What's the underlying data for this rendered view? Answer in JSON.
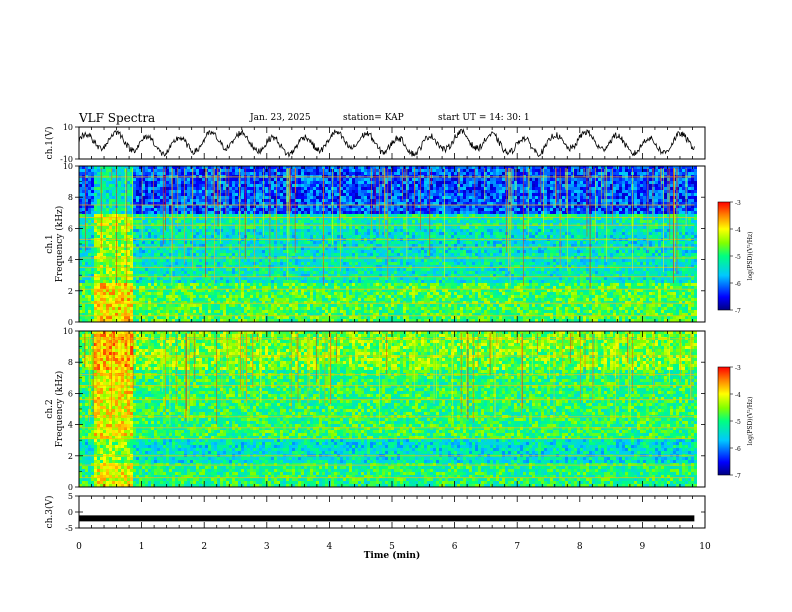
{
  "header": {
    "title": "VLF Spectra",
    "date": "Jan. 23, 2025",
    "station": "station= KAP",
    "start": "start  UT  =   14: 30: 1"
  },
  "chart_data": [
    {
      "type": "line",
      "ylabel": "ch.1(V)",
      "ylim": [
        -10,
        10
      ],
      "yticks": [
        "10",
        "-10"
      ],
      "xlim": [
        0,
        10
      ],
      "series": [
        {
          "pattern": "noisy oscillation, approx. 0.5-min period",
          "y_range": [
            -9,
            9
          ]
        }
      ]
    },
    {
      "type": "heatmap",
      "ylabel": "Frequency (kHz)",
      "channel_label": "ch.1",
      "ylim": [
        0,
        10
      ],
      "yticks": [
        "0",
        "2",
        "4",
        "6",
        "8",
        "10"
      ],
      "xlim": [
        0,
        10
      ],
      "colorbar": {
        "label": "log(PSD)(V²/Hz)",
        "range": [
          -7,
          -3
        ],
        "ticks": [
          "-3",
          "-4",
          "-5",
          "-6",
          "-7"
        ]
      }
    },
    {
      "type": "heatmap",
      "ylabel": "Frequency (kHz)",
      "channel_label": "ch.2",
      "ylim": [
        0,
        10
      ],
      "yticks": [
        "0",
        "2",
        "4",
        "6",
        "8",
        "10"
      ],
      "xlim": [
        0,
        10
      ],
      "colorbar": {
        "label": "log(PSD)(V²/Hz)",
        "range": [
          -7,
          -3
        ],
        "ticks": [
          "-3",
          "-4",
          "-5",
          "-6",
          "-7"
        ]
      }
    },
    {
      "type": "line",
      "ylabel": "ch.3(V)",
      "ylim": [
        -5,
        5
      ],
      "yticks": [
        "5",
        "0",
        "-5"
      ],
      "xlim": [
        0,
        10
      ],
      "series": [
        {
          "pattern": "constant",
          "y": -2
        }
      ]
    }
  ],
  "xaxis": {
    "label": "Time  (min)",
    "ticks": [
      "0",
      "1",
      "2",
      "3",
      "4",
      "5",
      "6",
      "7",
      "8",
      "9",
      "10"
    ]
  }
}
